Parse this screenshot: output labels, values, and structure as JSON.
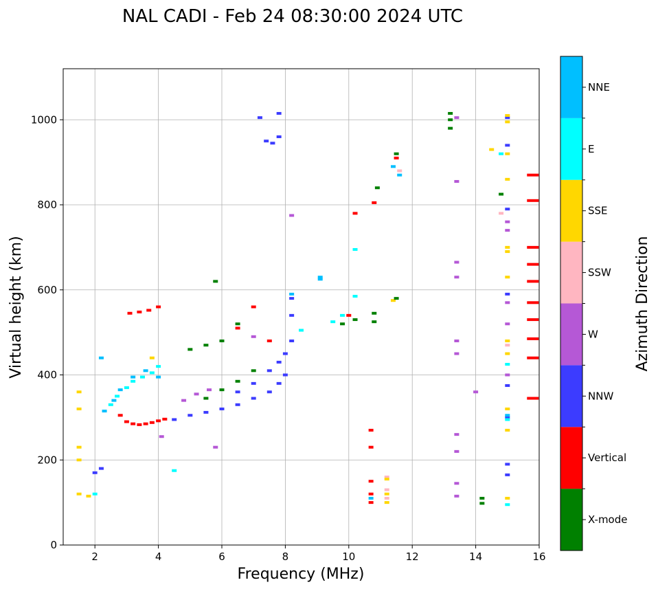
{
  "chart_data": {
    "type": "scatter",
    "title": "NAL CADI - Feb 24 08:30:00 2024 UTC",
    "xlabel": "Frequency (MHz)",
    "ylabel": "Virtual height (km)",
    "xlim": [
      1,
      16
    ],
    "ylim": [
      0,
      1120
    ],
    "xticks": [
      2,
      4,
      6,
      8,
      10,
      12,
      14,
      16
    ],
    "yticks": [
      0,
      200,
      400,
      600,
      800,
      1000
    ],
    "grid": true,
    "colorbar": {
      "label": "Azimuth Direction",
      "categories": [
        {
          "name": "X-mode",
          "color": "#008000"
        },
        {
          "name": "Vertical",
          "color": "#ff0000"
        },
        {
          "name": "NNW",
          "color": "#3c3cff"
        },
        {
          "name": "W",
          "color": "#b558d6"
        },
        {
          "name": "SSW",
          "color": "#ffb6c1"
        },
        {
          "name": "SSE",
          "color": "#ffd700"
        },
        {
          "name": "E",
          "color": "#00ffff"
        },
        {
          "name": "NNE",
          "color": "#00bfff"
        }
      ]
    },
    "series": [
      {
        "name": "Vertical",
        "color": "#ff0000",
        "points": [
          [
            2.8,
            305
          ],
          [
            3.0,
            290
          ],
          [
            3.2,
            285
          ],
          [
            3.4,
            283
          ],
          [
            3.6,
            285
          ],
          [
            3.8,
            288
          ],
          [
            4.0,
            292
          ],
          [
            4.2,
            296
          ],
          [
            3.1,
            545
          ],
          [
            3.4,
            548
          ],
          [
            3.7,
            552
          ],
          [
            4.0,
            560
          ],
          [
            10.0,
            540
          ],
          [
            10.7,
            270
          ],
          [
            10.7,
            230
          ],
          [
            10.7,
            150
          ],
          [
            10.7,
            120
          ],
          [
            10.7,
            100
          ],
          [
            10.2,
            780
          ],
          [
            10.8,
            805
          ],
          [
            11.5,
            910
          ],
          [
            15.8,
            870
          ],
          [
            15.8,
            810
          ],
          [
            15.8,
            700
          ],
          [
            15.8,
            660
          ],
          [
            15.8,
            620
          ],
          [
            15.8,
            570
          ],
          [
            15.8,
            530
          ],
          [
            15.8,
            485
          ],
          [
            15.8,
            440
          ],
          [
            15.8,
            345
          ],
          [
            6.5,
            510
          ],
          [
            7.0,
            560
          ],
          [
            7.5,
            480
          ]
        ]
      },
      {
        "name": "NNW",
        "color": "#3c3cff",
        "points": [
          [
            4.5,
            295
          ],
          [
            5.0,
            305
          ],
          [
            5.5,
            312
          ],
          [
            6.0,
            320
          ],
          [
            6.5,
            330
          ],
          [
            7.0,
            345
          ],
          [
            7.5,
            360
          ],
          [
            7.8,
            380
          ],
          [
            8.0,
            400
          ],
          [
            6.5,
            360
          ],
          [
            7.0,
            380
          ],
          [
            7.5,
            410
          ],
          [
            7.8,
            430
          ],
          [
            8.0,
            450
          ],
          [
            8.2,
            480
          ],
          [
            8.2,
            540
          ],
          [
            8.2,
            580
          ],
          [
            7.8,
            960
          ],
          [
            7.6,
            945
          ],
          [
            7.4,
            950
          ],
          [
            7.2,
            1005
          ],
          [
            7.8,
            1015
          ],
          [
            15.0,
            1005
          ],
          [
            15.0,
            940
          ],
          [
            15.0,
            790
          ],
          [
            15.0,
            590
          ],
          [
            15.0,
            375
          ],
          [
            15.0,
            300
          ],
          [
            15.0,
            190
          ],
          [
            15.0,
            165
          ],
          [
            2.0,
            170
          ],
          [
            2.2,
            180
          ]
        ]
      },
      {
        "name": "W",
        "color": "#b558d6",
        "points": [
          [
            4.8,
            340
          ],
          [
            5.2,
            355
          ],
          [
            5.6,
            365
          ],
          [
            7.0,
            490
          ],
          [
            8.2,
            775
          ],
          [
            13.4,
            1005
          ],
          [
            13.4,
            855
          ],
          [
            13.4,
            665
          ],
          [
            13.4,
            630
          ],
          [
            13.4,
            480
          ],
          [
            13.4,
            450
          ],
          [
            13.4,
            260
          ],
          [
            13.4,
            220
          ],
          [
            13.4,
            145
          ],
          [
            13.4,
            115
          ],
          [
            15.0,
            760
          ],
          [
            15.0,
            740
          ],
          [
            15.0,
            570
          ],
          [
            15.0,
            520
          ],
          [
            15.0,
            400
          ],
          [
            14.0,
            360
          ],
          [
            4.1,
            255
          ],
          [
            5.8,
            230
          ]
        ]
      },
      {
        "name": "SSW",
        "color": "#ffb6c1",
        "points": [
          [
            11.2,
            160
          ],
          [
            11.2,
            130
          ],
          [
            11.2,
            110
          ],
          [
            14.8,
            780
          ],
          [
            11.6,
            880
          ],
          [
            15.0,
            470
          ]
        ]
      },
      {
        "name": "SSE",
        "color": "#ffd700",
        "points": [
          [
            1.5,
            360
          ],
          [
            1.5,
            320
          ],
          [
            1.5,
            230
          ],
          [
            1.5,
            200
          ],
          [
            1.5,
            120
          ],
          [
            1.8,
            115
          ],
          [
            11.2,
            155
          ],
          [
            11.2,
            120
          ],
          [
            11.2,
            100
          ],
          [
            15.0,
            1010
          ],
          [
            15.0,
            995
          ],
          [
            15.0,
            920
          ],
          [
            15.0,
            860
          ],
          [
            15.0,
            700
          ],
          [
            15.0,
            690
          ],
          [
            15.0,
            630
          ],
          [
            15.0,
            480
          ],
          [
            15.0,
            450
          ],
          [
            15.0,
            320
          ],
          [
            15.0,
            270
          ],
          [
            15.0,
            110
          ],
          [
            11.4,
            575
          ],
          [
            14.5,
            930
          ],
          [
            3.8,
            440
          ]
        ]
      },
      {
        "name": "E",
        "color": "#00ffff",
        "points": [
          [
            2.5,
            330
          ],
          [
            2.7,
            350
          ],
          [
            3.0,
            370
          ],
          [
            3.2,
            385
          ],
          [
            3.5,
            395
          ],
          [
            3.8,
            405
          ],
          [
            4.0,
            420
          ],
          [
            9.5,
            525
          ],
          [
            9.8,
            540
          ],
          [
            10.2,
            585
          ],
          [
            10.2,
            695
          ],
          [
            15.0,
            425
          ],
          [
            15.0,
            295
          ],
          [
            15.0,
            95
          ],
          [
            4.5,
            175
          ],
          [
            2.0,
            120
          ],
          [
            14.8,
            920
          ],
          [
            8.5,
            505
          ]
        ]
      },
      {
        "name": "NNE",
        "color": "#00bfff",
        "points": [
          [
            2.3,
            315
          ],
          [
            2.6,
            340
          ],
          [
            2.8,
            365
          ],
          [
            3.2,
            395
          ],
          [
            3.6,
            410
          ],
          [
            4.0,
            395
          ],
          [
            9.1,
            625
          ],
          [
            9.1,
            630
          ],
          [
            8.2,
            590
          ],
          [
            11.6,
            870
          ],
          [
            11.4,
            890
          ],
          [
            2.2,
            440
          ],
          [
            10.7,
            110
          ],
          [
            15.0,
            305
          ]
        ]
      },
      {
        "name": "X-mode",
        "color": "#008000",
        "points": [
          [
            5.5,
            345
          ],
          [
            6.0,
            365
          ],
          [
            6.5,
            385
          ],
          [
            7.0,
            410
          ],
          [
            5.0,
            460
          ],
          [
            5.5,
            470
          ],
          [
            6.0,
            480
          ],
          [
            6.5,
            520
          ],
          [
            9.8,
            520
          ],
          [
            10.2,
            530
          ],
          [
            10.8,
            545
          ],
          [
            10.8,
            525
          ],
          [
            11.5,
            580
          ],
          [
            13.2,
            1015
          ],
          [
            13.2,
            1000
          ],
          [
            13.2,
            980
          ],
          [
            14.8,
            825
          ],
          [
            14.2,
            110
          ],
          [
            14.2,
            98
          ],
          [
            11.5,
            920
          ],
          [
            10.9,
            840
          ],
          [
            5.8,
            620
          ]
        ]
      }
    ]
  }
}
